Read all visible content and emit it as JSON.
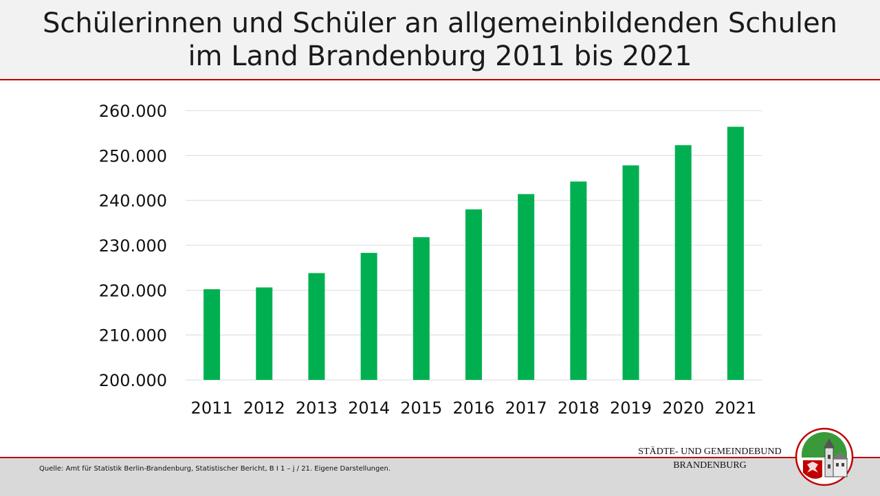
{
  "header": {
    "title_line1": "Schülerinnen und Schüler an allgemeinbildenden Schulen",
    "title_line2": "im Land Brandenburg 2011 bis 2021"
  },
  "chart_data": {
    "type": "bar",
    "categories": [
      "2011",
      "2012",
      "2013",
      "2014",
      "2015",
      "2016",
      "2017",
      "2018",
      "2019",
      "2020",
      "2021"
    ],
    "values": [
      220200,
      220600,
      223800,
      228300,
      231800,
      238000,
      241400,
      244200,
      247800,
      252300,
      256400
    ],
    "ylim": [
      200000,
      260000
    ],
    "yticks": [
      200000,
      210000,
      220000,
      230000,
      240000,
      250000,
      260000
    ],
    "ytick_labels": [
      "200.000",
      "210.000",
      "220.000",
      "230.000",
      "240.000",
      "250.000",
      "260.000"
    ],
    "grid": true,
    "bar_color": "#00b050"
  },
  "footer": {
    "source": "Quelle: Amt für Statistik Berlin-Brandenburg, Statistischer Bericht, B I 1 – j / 21. Eigene Darstellungen.",
    "org_line1": "STÄDTE-  UND GEMEINDEBUND",
    "org_line2": "BRANDENBURG"
  },
  "colors": {
    "accent": "#c00000",
    "header_bg": "#f2f2f2",
    "footer_bg": "#d9d9d9"
  },
  "icons": {
    "logo": "coat-of-arms-logo"
  }
}
